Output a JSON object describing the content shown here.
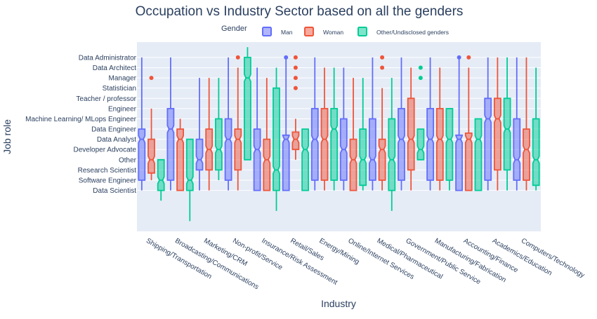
{
  "chart_data": {
    "type": "box",
    "title": "Occupation vs Industry Sector based on all the genders",
    "xlabel": "Industry",
    "ylabel": "Job role",
    "legend": {
      "title": "Gender",
      "placement": "top"
    },
    "grid": true,
    "notched": true,
    "categories": [
      "Shipping/Transportation",
      "Broadcasting/Communications",
      "Marketing/CRM",
      "Non-profit/Service",
      "Insurance/Risk Assessment",
      "Retail/Sales",
      "Energy/Mining",
      "Online/Internet Services",
      "Medical/Pharmaceutical",
      "Government/Public Service",
      "Manufacturing/Fabrication",
      "Accounting/Finance",
      "Academics/Education",
      "Computers/Technology"
    ],
    "y_categories": [
      "Data Scientist",
      "Software Engineer",
      "Research Scientist",
      "Other",
      "Developer Advocate",
      "Data Analyst",
      "Data Engineer",
      "Machine Learning/ MLops Engineer",
      "Engineer",
      "Teacher / professor",
      "Statistician",
      "Manager",
      "Data Architect",
      "Data Administrator"
    ],
    "y_range": [
      -4,
      14.5
    ],
    "series": [
      {
        "name": "Man",
        "color": "#636efa",
        "boxes": [
          {
            "lower": 0,
            "q1": 1,
            "median": 5,
            "q3": 6,
            "upper": 13,
            "outliers": []
          },
          {
            "lower": 0,
            "q1": 1,
            "median": 6,
            "q3": 8,
            "upper": 13,
            "outliers": []
          },
          {
            "lower": 0,
            "q1": 2,
            "median": 3,
            "q3": 5,
            "upper": 11,
            "outliers": []
          },
          {
            "lower": 0,
            "q1": 1,
            "median": 5,
            "q3": 7,
            "upper": 13,
            "outliers": []
          },
          {
            "lower": 0,
            "q1": 0,
            "median": 4,
            "q3": 6,
            "upper": 12,
            "outliers": []
          },
          {
            "lower": 0,
            "q1": 0,
            "median": 5,
            "q3": 5.4,
            "upper": 13,
            "outliers": [
              13
            ]
          },
          {
            "lower": 0,
            "q1": 1,
            "median": 5,
            "q3": 8,
            "upper": 13,
            "outliers": []
          },
          {
            "lower": 0,
            "q1": 1,
            "median": 4,
            "q3": 7,
            "upper": 12,
            "outliers": []
          },
          {
            "lower": 0,
            "q1": 1,
            "median": 3,
            "q3": 7,
            "upper": 13,
            "outliers": []
          },
          {
            "lower": 0,
            "q1": 1,
            "median": 5,
            "q3": 8,
            "upper": 13,
            "outliers": []
          },
          {
            "lower": 0,
            "q1": 1,
            "median": 5,
            "q3": 8,
            "upper": 13,
            "outliers": []
          },
          {
            "lower": 0,
            "q1": 0,
            "median": 5,
            "q3": 5.4,
            "upper": 13,
            "outliers": [
              13
            ]
          },
          {
            "lower": 0,
            "q1": 1,
            "median": 7,
            "q3": 9,
            "upper": 13,
            "outliers": []
          },
          {
            "lower": 0,
            "q1": 1,
            "median": 3,
            "q3": 7,
            "upper": 13,
            "outliers": []
          }
        ]
      },
      {
        "name": "Woman",
        "color": "#ef553b",
        "boxes": [
          {
            "lower": 1,
            "q1": 1.7,
            "median": 3,
            "q3": 5,
            "upper": 8,
            "outliers": [
              11
            ]
          },
          {
            "lower": 0,
            "q1": 0,
            "median": 5,
            "q3": 6,
            "upper": 7,
            "outliers": []
          },
          {
            "lower": 0,
            "q1": 2,
            "median": 4,
            "q3": 6,
            "upper": 11,
            "outliers": []
          },
          {
            "lower": 0,
            "q1": 2,
            "median": 5,
            "q3": 6,
            "upper": 12,
            "outliers": [
              13
            ]
          },
          {
            "lower": 0,
            "q1": 0,
            "median": 3,
            "q3": 5,
            "upper": 11,
            "outliers": []
          },
          {
            "lower": 3,
            "q1": 4,
            "median": 5,
            "q3": 5.7,
            "upper": 7,
            "outliers": [
              13,
              12,
              11,
              10
            ]
          },
          {
            "lower": 0,
            "q1": 1,
            "median": 5,
            "q3": 8,
            "upper": 12,
            "outliers": []
          },
          {
            "lower": 0,
            "q1": 0,
            "median": 3,
            "q3": 5,
            "upper": 11,
            "outliers": []
          },
          {
            "lower": 0,
            "q1": 1,
            "median": 4,
            "q3": 5,
            "upper": 10,
            "outliers": [
              13,
              12
            ]
          },
          {
            "lower": 0,
            "q1": 2,
            "median": 5,
            "q3": 9,
            "upper": 12,
            "outliers": []
          },
          {
            "lower": 0,
            "q1": 1,
            "median": 5,
            "q3": 8,
            "upper": 12,
            "outliers": []
          },
          {
            "lower": 0,
            "q1": 0,
            "median": 5,
            "q3": 5.6,
            "upper": 12,
            "outliers": [
              13
            ]
          },
          {
            "lower": 0,
            "q1": 2,
            "median": 7,
            "q3": 9,
            "upper": 13,
            "outliers": []
          },
          {
            "lower": 0,
            "q1": 1,
            "median": 4,
            "q3": 6,
            "upper": 13,
            "outliers": []
          }
        ]
      },
      {
        "name": "Other/Undisclosed genders",
        "color": "#00cc96",
        "boxes": [
          {
            "lower": -1,
            "q1": 0,
            "median": 1,
            "q3": 3,
            "upper": 3,
            "outliers": []
          },
          {
            "lower": -3,
            "q1": 0,
            "median": 1,
            "q3": 5,
            "upper": 5,
            "outliers": []
          },
          {
            "lower": 1,
            "q1": 2,
            "median": 4,
            "q3": 7,
            "upper": 11,
            "outliers": []
          },
          {
            "lower": 3,
            "q1": 3,
            "median": 11,
            "q3": 13,
            "upper": 14,
            "outliers": []
          },
          {
            "lower": -2,
            "q1": 0,
            "median": 2,
            "q3": 10,
            "upper": 12,
            "outliers": []
          },
          {
            "lower": 0,
            "q1": 0,
            "median": 4,
            "q3": 6,
            "upper": 6,
            "outliers": []
          },
          {
            "lower": 0,
            "q1": 1,
            "median": 6,
            "q3": 8,
            "upper": 12,
            "outliers": []
          },
          {
            "lower": 0,
            "q1": 0.5,
            "median": 3,
            "q3": 6,
            "upper": 11,
            "outliers": []
          },
          {
            "lower": -2,
            "q1": 0,
            "median": 3,
            "q3": 7,
            "upper": 11,
            "outliers": []
          },
          {
            "lower": 3,
            "q1": 3,
            "median": 4,
            "q3": 6,
            "upper": 6,
            "outliers": [
              12,
              11
            ]
          },
          {
            "lower": 0,
            "q1": 1,
            "median": 5,
            "q3": 8,
            "upper": 8,
            "outliers": []
          },
          {
            "lower": 0,
            "q1": 0,
            "median": 5,
            "q3": 7,
            "upper": 7,
            "outliers": []
          },
          {
            "lower": 0,
            "q1": 2,
            "median": 6,
            "q3": 9,
            "upper": 13,
            "outliers": []
          },
          {
            "lower": 0,
            "q1": 0.5,
            "median": 3,
            "q3": 7,
            "upper": 12,
            "outliers": []
          }
        ]
      }
    ]
  }
}
